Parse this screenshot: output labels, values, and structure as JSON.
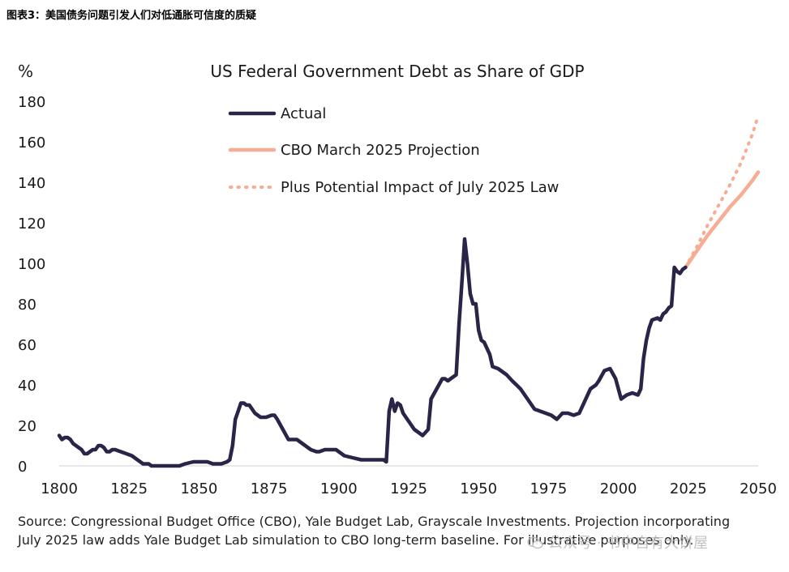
{
  "caption": "图表3：美国债务问题引发人们对低通胀可信度的质疑",
  "source_note": "Source: Congressional Budget Office (CBO), Yale Budget Lab, Grayscale Investments. Projection incorporating July 2025 law adds Yale Budget Lab simulation to CBO long-term baseline. For illustrative purposes only.",
  "watermark": "公众号 · 书中自有大饼屋",
  "colors": {
    "actual": "#2a2448",
    "projection": "#f7ad93",
    "text": "#1a1a1a"
  },
  "chart_data": {
    "type": "line",
    "title": "US Federal Government Debt as Share of GDP",
    "ylabel": "%",
    "xlabel": "",
    "xlim": [
      1800,
      2050
    ],
    "ylim": [
      0,
      180
    ],
    "x_ticks": [
      "1800",
      "1825",
      "1850",
      "1875",
      "1900",
      "1925",
      "1950",
      "1975",
      "2000",
      "2025",
      "2050"
    ],
    "y_ticks": [
      "0",
      "20",
      "40",
      "60",
      "80",
      "100",
      "120",
      "140",
      "160",
      "180"
    ],
    "grid": false,
    "legend_position": "top-left",
    "series": [
      {
        "name": "Actual",
        "style": "solid",
        "x": [
          1800,
          1801,
          1802,
          1803,
          1804,
          1805,
          1806,
          1807,
          1808,
          1809,
          1810,
          1811,
          1812,
          1813,
          1814,
          1815,
          1816,
          1817,
          1818,
          1819,
          1820,
          1822,
          1824,
          1826,
          1828,
          1830,
          1832,
          1833,
          1835,
          1837,
          1840,
          1843,
          1845,
          1848,
          1850,
          1853,
          1855,
          1857,
          1858,
          1860,
          1861,
          1862,
          1863,
          1864,
          1865,
          1866,
          1867,
          1868,
          1870,
          1872,
          1874,
          1876,
          1877,
          1878,
          1880,
          1882,
          1885,
          1888,
          1890,
          1892,
          1893,
          1895,
          1897,
          1899,
          1900,
          1902,
          1905,
          1908,
          1910,
          1913,
          1916,
          1917,
          1918,
          1919,
          1920,
          1921,
          1922,
          1923,
          1925,
          1927,
          1929,
          1930,
          1932,
          1933,
          1935,
          1937,
          1938,
          1939,
          1940,
          1942,
          1943,
          1944,
          1945,
          1946,
          1947,
          1948,
          1949,
          1950,
          1951,
          1952,
          1954,
          1955,
          1957,
          1959,
          1960,
          1962,
          1965,
          1968,
          1970,
          1972,
          1974,
          1976,
          1978,
          1980,
          1982,
          1984,
          1986,
          1988,
          1990,
          1992,
          1993,
          1995,
          1997,
          1999,
          2000,
          2001,
          2003,
          2005,
          2007,
          2008,
          2009,
          2010,
          2011,
          2012,
          2014,
          2015,
          2016,
          2017,
          2018,
          2019,
          2020,
          2021,
          2022,
          2023,
          2024
        ],
        "y": [
          15,
          13,
          14,
          14,
          13,
          11,
          10,
          9,
          8,
          6,
          6,
          7,
          8,
          8,
          10,
          10,
          9,
          7,
          7,
          8,
          8,
          7,
          6,
          5,
          3,
          1,
          1,
          0,
          0,
          0,
          0,
          0,
          1,
          2,
          2,
          2,
          1,
          1,
          1,
          2,
          3,
          10,
          23,
          27,
          31,
          31,
          30,
          30,
          26,
          24,
          24,
          25,
          25,
          23,
          18,
          13,
          13,
          10,
          8,
          7,
          7,
          8,
          8,
          8,
          7,
          5,
          4,
          3,
          3,
          3,
          3,
          2,
          27,
          33,
          27,
          31,
          30,
          26,
          22,
          18,
          16,
          15,
          18,
          33,
          38,
          43,
          43,
          42,
          43,
          45,
          70,
          90,
          112,
          100,
          85,
          80,
          80,
          67,
          62,
          61,
          55,
          49,
          48,
          46,
          45,
          42,
          38,
          32,
          28,
          27,
          26,
          25,
          23,
          26,
          26,
          25,
          26,
          32,
          38,
          40,
          42,
          47,
          48,
          43,
          38,
          33,
          35,
          36,
          35,
          38,
          53,
          62,
          68,
          72,
          73,
          72,
          75,
          76,
          78,
          79,
          98,
          96,
          95,
          97,
          98
        ]
      },
      {
        "name": "CBO March 2025 Projection",
        "style": "solid",
        "x": [
          2024,
          2028,
          2032,
          2036,
          2040,
          2044,
          2048,
          2050
        ],
        "y": [
          98,
          106,
          114,
          121,
          128,
          134,
          141,
          145
        ]
      },
      {
        "name": "Plus Potential Impact of July 2025 Law",
        "style": "dotted",
        "x": [
          2024,
          2028,
          2032,
          2036,
          2040,
          2044,
          2048,
          2050
        ],
        "y": [
          98,
          108,
          119,
          129,
          139,
          150,
          164,
          173
        ]
      }
    ]
  }
}
